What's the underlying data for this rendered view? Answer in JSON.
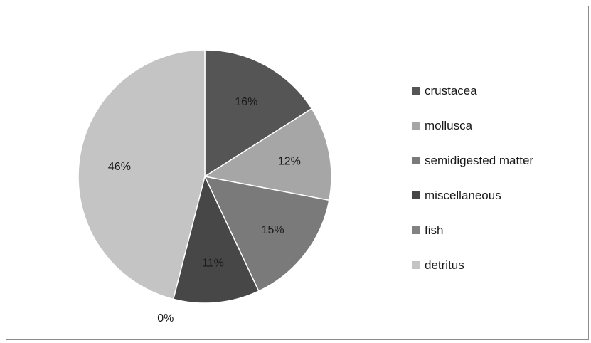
{
  "chart_data": {
    "type": "pie",
    "slices": [
      {
        "name": "crustacea",
        "value": 16,
        "label": "16%",
        "color": "#555555"
      },
      {
        "name": "mollusca",
        "value": 12,
        "label": "12%",
        "color": "#a6a6a6"
      },
      {
        "name": "semidigested matter",
        "value": 15,
        "label": "15%",
        "color": "#7a7a7a"
      },
      {
        "name": "miscellaneous",
        "value": 11,
        "label": "11%",
        "color": "#474747"
      },
      {
        "name": "fish",
        "value": 0,
        "label": "0%",
        "color": "#828282"
      },
      {
        "name": "detritus",
        "value": 46,
        "label": "46%",
        "color": "#c4c4c4"
      }
    ],
    "legend_position": "right"
  }
}
